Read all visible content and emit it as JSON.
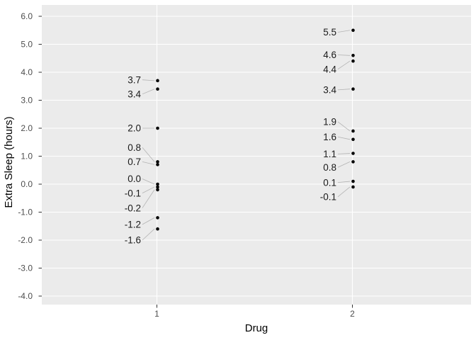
{
  "chart_data": {
    "type": "scatter",
    "title": "",
    "xlabel": "Drug",
    "ylabel": "Extra Sleep (hours)",
    "x_categories": [
      "1",
      "2"
    ],
    "y_ticks": [
      "6.0",
      "5.0",
      "4.0",
      "3.0",
      "2.0",
      "1.0",
      "0.0",
      "-1.0",
      "-2.0",
      "-3.0",
      "-4.0"
    ],
    "y_tick_values": [
      6,
      5,
      4,
      3,
      2,
      1,
      0,
      -1,
      -2,
      -3,
      -4
    ],
    "ylim": [
      -4.3,
      6.4
    ],
    "grid": "major-only",
    "legend": "none",
    "colors": {
      "panel_bg": "#EBEBEB",
      "grid": "#FFFFFF",
      "point": "#000000",
      "point_label": "#1A1A1A",
      "tick_text": "#4D4D4D",
      "tick_mark": "#333333",
      "axis_title": "#000000",
      "leader_line": "#B3B3B3"
    },
    "series": [
      {
        "name": "Drug 1",
        "x": "1",
        "points": [
          {
            "value": 3.7,
            "label": "3.7",
            "label_y": 3.73
          },
          {
            "value": 3.4,
            "label": "3.4",
            "label_y": 3.22
          },
          {
            "value": 2.0,
            "label": "2.0",
            "label_y": 2.0
          },
          {
            "value": 0.8,
            "label": "0.8",
            "label_y": 1.31
          },
          {
            "value": 0.7,
            "label": "0.7",
            "label_y": 0.8
          },
          {
            "value": 0.0,
            "label": "0.0",
            "label_y": 0.19
          },
          {
            "value": -0.1,
            "label": "-0.1",
            "label_y": -0.32
          },
          {
            "value": -0.2,
            "label": "-0.2",
            "label_y": -0.85
          },
          {
            "value": -1.2,
            "label": "-1.2",
            "label_y": -1.44
          },
          {
            "value": -1.6,
            "label": "-1.6",
            "label_y": -2.0
          }
        ]
      },
      {
        "name": "Drug 2",
        "x": "2",
        "points": [
          {
            "value": 5.5,
            "label": "5.5",
            "label_y": 5.43
          },
          {
            "value": 4.6,
            "label": "4.6",
            "label_y": 4.62
          },
          {
            "value": 4.4,
            "label": "4.4",
            "label_y": 4.11
          },
          {
            "value": 3.4,
            "label": "3.4",
            "label_y": 3.37
          },
          {
            "value": 1.9,
            "label": "1.9",
            "label_y": 2.23
          },
          {
            "value": 1.6,
            "label": "1.6",
            "label_y": 1.69
          },
          {
            "value": 1.1,
            "label": "1.1",
            "label_y": 1.08
          },
          {
            "value": 0.8,
            "label": "0.8",
            "label_y": 0.6
          },
          {
            "value": 0.1,
            "label": "0.1",
            "label_y": 0.06
          },
          {
            "value": -0.1,
            "label": "-0.1",
            "label_y": -0.45
          }
        ]
      }
    ]
  }
}
